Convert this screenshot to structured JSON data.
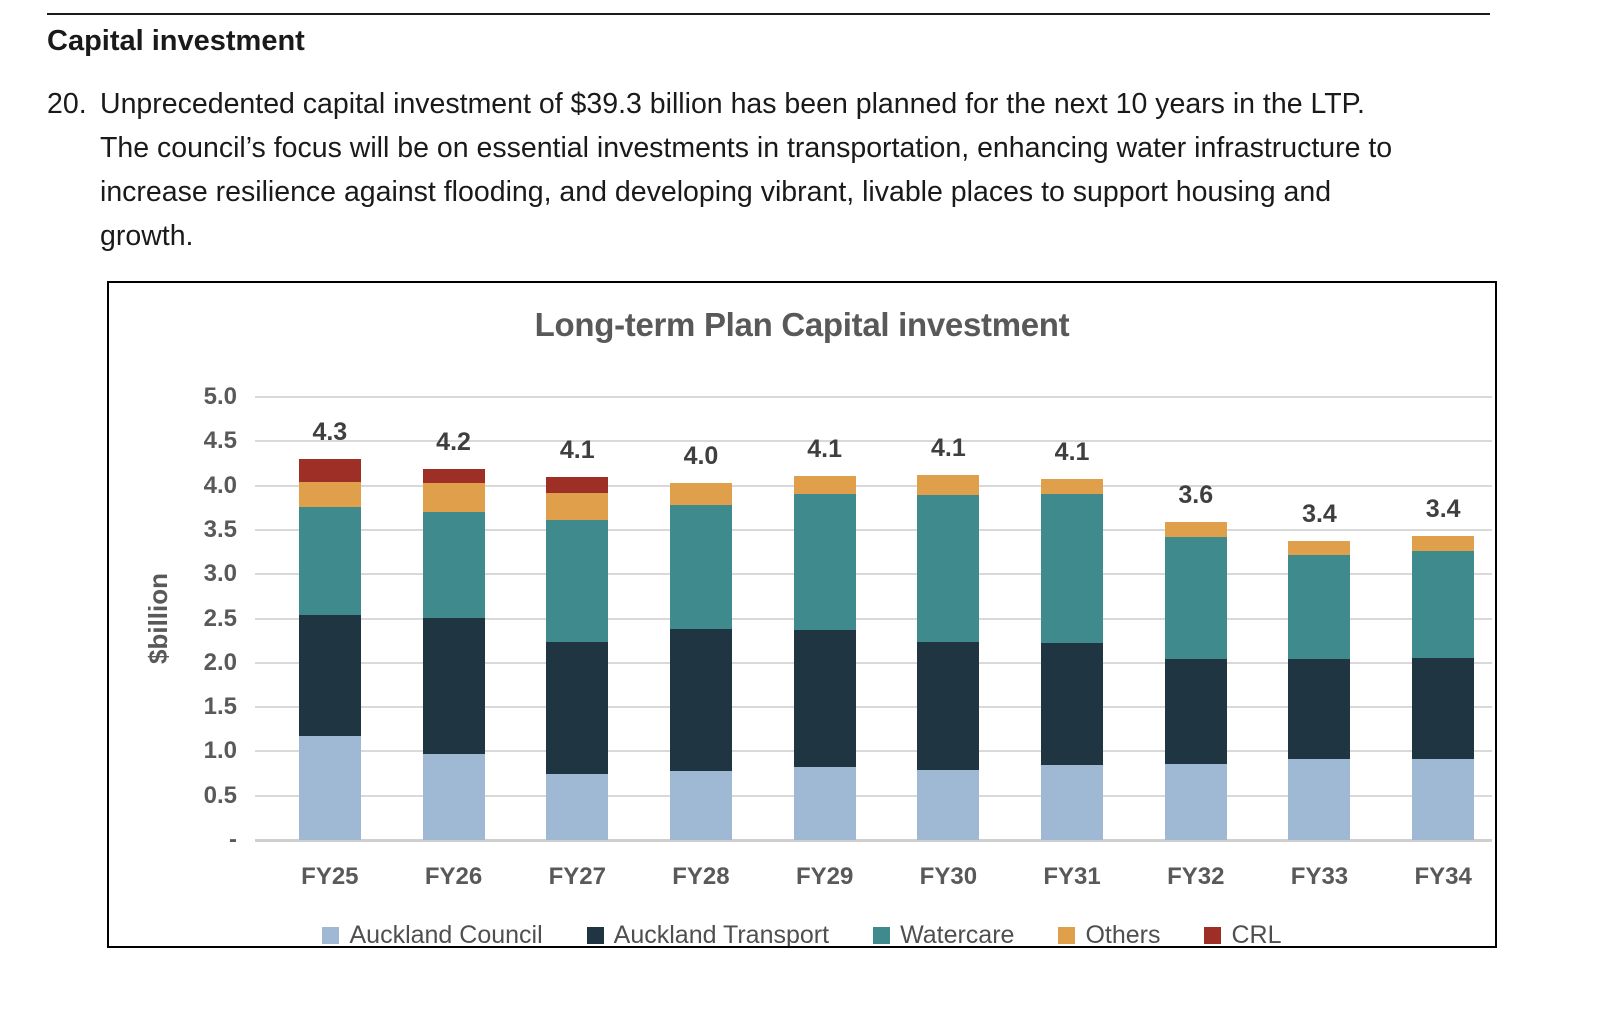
{
  "document": {
    "heading": "Capital investment",
    "paragraph": {
      "number": "20.",
      "text": "Unprecedented capital investment of $39.3 billion has been planned for the next 10 years in the LTP. The council’s focus will be on essential investments in transportation, enhancing water infrastructure to increase resilience against flooding, and developing vibrant, livable places to support housing and growth."
    }
  },
  "chart_data": {
    "type": "bar",
    "stacked": true,
    "title": "Long-term Plan Capital investment",
    "xlabel": "",
    "ylabel": "$billion",
    "ylim": [
      0,
      5.0
    ],
    "ytick_labels": [
      "5.0",
      "4.5",
      "4.0",
      "3.5",
      "3.0",
      "2.5",
      "2.0",
      "1.5",
      "1.0",
      "0.5",
      "-"
    ],
    "grid": true,
    "legend_position": "bottom",
    "categories": [
      "FY25",
      "FY26",
      "FY27",
      "FY28",
      "FY29",
      "FY30",
      "FY31",
      "FY32",
      "FY33",
      "FY34"
    ],
    "series": [
      {
        "name": "Auckland Council",
        "color": "#9FB9D4",
        "values": [
          1.17,
          0.97,
          0.74,
          0.78,
          0.82,
          0.79,
          0.85,
          0.86,
          0.91,
          0.91
        ]
      },
      {
        "name": "Auckland Transport",
        "color": "#1F3642",
        "values": [
          1.37,
          1.54,
          1.49,
          1.6,
          1.55,
          1.45,
          1.37,
          1.18,
          1.13,
          1.14
        ]
      },
      {
        "name": "Watercare",
        "color": "#3E8A8D",
        "values": [
          1.22,
          1.19,
          1.38,
          1.4,
          1.54,
          1.65,
          1.68,
          1.38,
          1.18,
          1.21
        ]
      },
      {
        "name": "Others",
        "color": "#E0A04B",
        "values": [
          0.28,
          0.33,
          0.31,
          0.25,
          0.2,
          0.23,
          0.17,
          0.17,
          0.15,
          0.17
        ]
      },
      {
        "name": "CRL",
        "color": "#9E2F26",
        "values": [
          0.26,
          0.16,
          0.18,
          0,
          0,
          0,
          0,
          0,
          0,
          0
        ]
      }
    ],
    "total_labels": [
      "4.3",
      "4.2",
      "4.1",
      "4.0",
      "4.1",
      "4.1",
      "4.1",
      "3.6",
      "3.4",
      "3.4"
    ]
  },
  "colors": {
    "grid": "#D9D9D9",
    "axis_text": "#595959",
    "title_text": "#595959",
    "data_label_text": "#3F3F3F",
    "body_text": "#1A1A1A",
    "chart_border": "#000000"
  }
}
